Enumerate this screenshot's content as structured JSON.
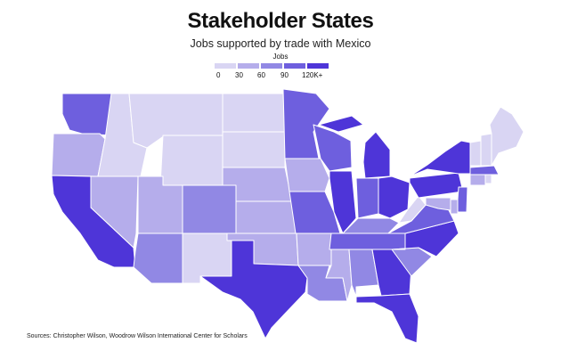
{
  "title": "Stakeholder States",
  "subtitle": "Jobs supported by trade with Mexico",
  "legend": {
    "title": "Jobs",
    "labels": [
      "0",
      "30",
      "60",
      "90",
      "120K+"
    ],
    "colors": [
      "#d9d5f3",
      "#b5adeb",
      "#9188e4",
      "#6e5fde",
      "#4e35d8"
    ]
  },
  "source": "Sources: Christopher Wilson, Woodrow Wilson International Center for Scholars",
  "states": {
    "WA": 4,
    "OR": 2,
    "CA": 5,
    "NV": 2,
    "ID": 1,
    "MT": 1,
    "WY": 1,
    "UT": 2,
    "AZ": 3,
    "NM": 1,
    "CO": 3,
    "ND": 1,
    "SD": 1,
    "NE": 2,
    "KS": 2,
    "OK": 2,
    "TX": 5,
    "MN": 4,
    "IA": 2,
    "MO": 4,
    "AR": 2,
    "LA": 3,
    "WI": 4,
    "IL": 5,
    "MI": 5,
    "IN": 4,
    "OH": 5,
    "KY": 3,
    "TN": 4,
    "MS": 2,
    "AL": 3,
    "GA": 5,
    "FL": 5,
    "SC": 3,
    "NC": 5,
    "VA": 4,
    "WV": 1,
    "PA": 5,
    "NY": 5,
    "VT": 1,
    "NH": 1,
    "ME": 1,
    "MA": 4,
    "CT": 2,
    "RI": 1,
    "NJ": 4,
    "DE": 2,
    "MD": 2
  }
}
